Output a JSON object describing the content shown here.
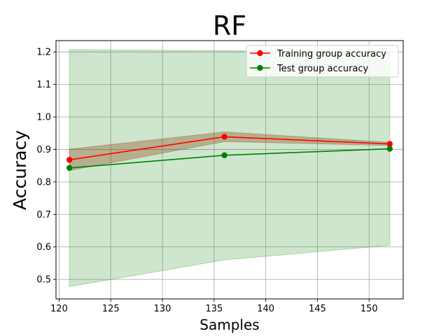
{
  "chart_data": {
    "type": "line",
    "title": "RF",
    "xlabel": "Samples",
    "ylabel": "Accuracy",
    "x": [
      121,
      136,
      152
    ],
    "xlim": [
      119.7,
      153.3
    ],
    "ylim": [
      0.44,
      1.235
    ],
    "xticks": [
      120,
      125,
      130,
      135,
      140,
      145,
      150
    ],
    "yticks": [
      0.5,
      0.6,
      0.7,
      0.8,
      0.9,
      1.0,
      1.1,
      1.2
    ],
    "ytick_labels": [
      "0.5",
      "0.6",
      "0.7",
      "0.8",
      "0.9",
      "1.0",
      "1.1",
      "1.2"
    ],
    "grid": true,
    "legend_position": "top-right",
    "series": [
      {
        "name": "Training group accuracy",
        "color": "#ff0000",
        "values": [
          0.868,
          0.939,
          0.917
        ],
        "band_lower": [
          0.835,
          0.924,
          0.912
        ],
        "band_upper": [
          0.901,
          0.954,
          0.922
        ],
        "band_color": "#8b4513"
      },
      {
        "name": "Test group accuracy",
        "color": "#008000",
        "values": [
          0.843,
          0.882,
          0.902
        ],
        "band_lower": [
          0.478,
          0.56,
          0.605
        ],
        "band_upper": [
          1.207,
          1.204,
          1.199
        ],
        "band_color": "#228b22"
      }
    ]
  }
}
